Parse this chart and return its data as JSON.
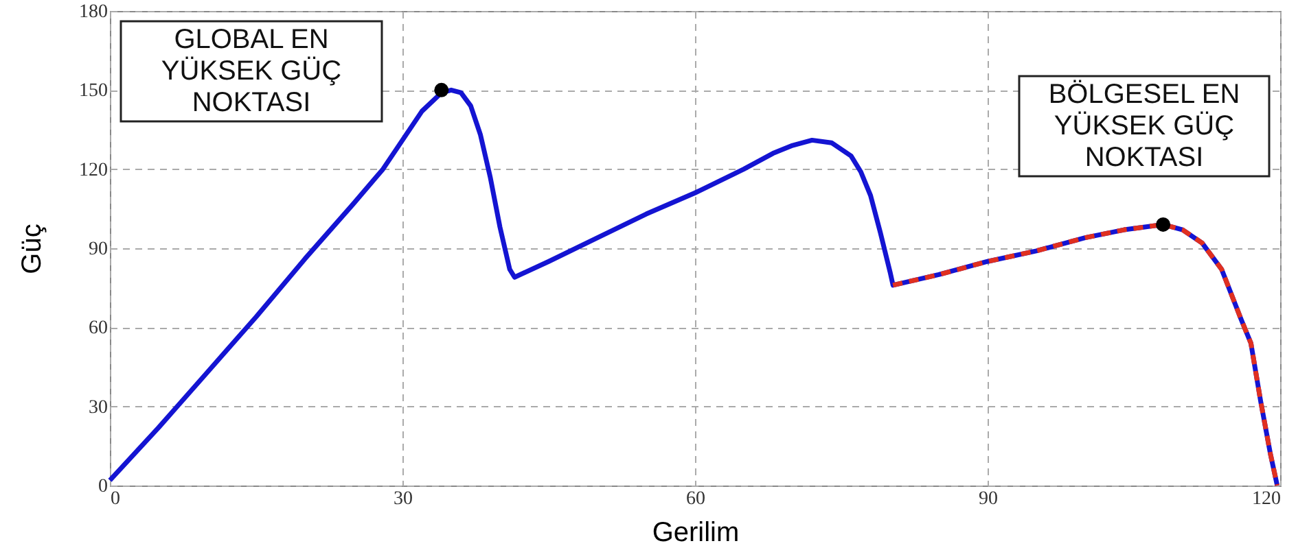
{
  "chart_data": {
    "type": "line",
    "xlabel": "Gerilim",
    "ylabel": "Güç",
    "xlim": [
      0,
      120
    ],
    "ylim": [
      0,
      180
    ],
    "xticks": [
      0,
      30,
      60,
      90,
      120
    ],
    "yticks": [
      0,
      30,
      60,
      90,
      120,
      150,
      180
    ],
    "grid": true,
    "line_style": "solid",
    "series": [
      {
        "color": "#1414d2",
        "x": [
          0,
          5,
          10,
          15,
          20,
          25,
          28,
          30,
          32,
          34,
          35,
          36,
          37,
          38,
          39,
          40,
          41,
          41.5,
          45,
          50,
          55,
          60,
          65,
          68,
          70,
          72,
          74,
          76,
          77,
          78,
          79,
          80,
          80.3,
          85,
          90,
          95,
          100,
          104,
          106,
          108,
          110,
          112,
          114,
          116,
          117,
          118,
          119,
          119.7
        ],
        "values": [
          2,
          22,
          43,
          64,
          86,
          107,
          120,
          131,
          142,
          149,
          150,
          149,
          144,
          133,
          117,
          98,
          82,
          79,
          85,
          94,
          103,
          111,
          120,
          126,
          129,
          131,
          130,
          125,
          119,
          110,
          96,
          81,
          76,
          80,
          85,
          89,
          94,
          97,
          98,
          99,
          97,
          92,
          82,
          63,
          54,
          32,
          12,
          0
        ]
      },
      {
        "color": "#e03020",
        "line_style": "dashed",
        "x": [
          80.3,
          85,
          90,
          95,
          100,
          104,
          106,
          108,
          110,
          112,
          114,
          116,
          117,
          118,
          119,
          119.7
        ],
        "values": [
          76,
          80,
          85,
          89,
          94,
          97,
          98,
          99,
          97,
          92,
          82,
          63,
          54,
          32,
          12,
          0
        ]
      },
      {
        "type": "scatter",
        "marker": "circle",
        "color": "#000000",
        "x": [
          34,
          108
        ],
        "values": [
          150,
          99
        ]
      }
    ],
    "annotations": [
      "GLOBAL EN YÜKSEK GÜÇ NOKTASI",
      "BÖLGESEL EN YÜKSEK GÜÇ NOKTASI"
    ]
  }
}
